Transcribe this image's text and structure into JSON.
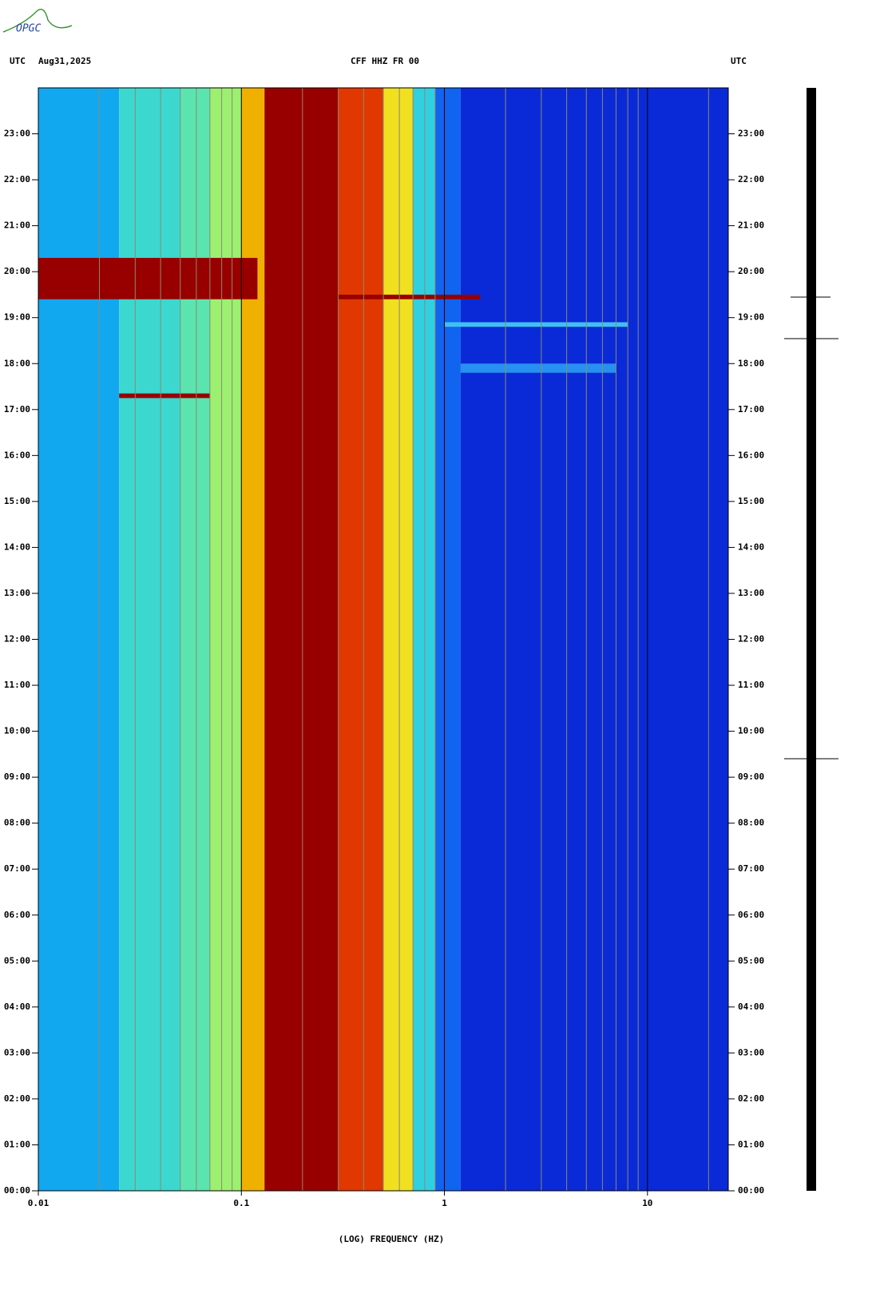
{
  "logo": "OPGC",
  "chart_data": {
    "type": "spectrogram",
    "header_left": "UTC",
    "date": "Aug31,2025",
    "title": "CFF HHZ FR 00",
    "header_right": "UTC",
    "xlabel": "(LOG) FREQUENCY (HZ)",
    "xscale": "log",
    "xlim": [
      0.01,
      25
    ],
    "xticks": [
      0.01,
      0.1,
      1,
      10
    ],
    "xgrid": [
      0.02,
      0.03,
      0.04,
      0.05,
      0.06,
      0.07,
      0.08,
      0.09,
      0.2,
      0.3,
      0.4,
      0.5,
      0.6,
      0.7,
      0.8,
      0.9,
      2,
      3,
      4,
      5,
      6,
      7,
      8,
      9,
      20
    ],
    "ylim": [
      0,
      24
    ],
    "yticks": [
      {
        "value": 0,
        "label": "00:00"
      },
      {
        "value": 1,
        "label": "01:00"
      },
      {
        "value": 2,
        "label": "02:00"
      },
      {
        "value": 3,
        "label": "03:00"
      },
      {
        "value": 4,
        "label": "04:00"
      },
      {
        "value": 5,
        "label": "05:00"
      },
      {
        "value": 6,
        "label": "06:00"
      },
      {
        "value": 7,
        "label": "07:00"
      },
      {
        "value": 8,
        "label": "08:00"
      },
      {
        "value": 9,
        "label": "09:00"
      },
      {
        "value": 10,
        "label": "10:00"
      },
      {
        "value": 11,
        "label": "11:00"
      },
      {
        "value": 12,
        "label": "12:00"
      },
      {
        "value": 13,
        "label": "13:00"
      },
      {
        "value": 14,
        "label": "14:00"
      },
      {
        "value": 15,
        "label": "15:00"
      },
      {
        "value": 16,
        "label": "16:00"
      },
      {
        "value": 17,
        "label": "17:00"
      },
      {
        "value": 18,
        "label": "18:00"
      },
      {
        "value": 19,
        "label": "19:00"
      },
      {
        "value": 20,
        "label": "20:00"
      },
      {
        "value": 21,
        "label": "21:00"
      },
      {
        "value": 22,
        "label": "22:00"
      },
      {
        "value": 23,
        "label": "23:00"
      }
    ],
    "bands": [
      {
        "x": [
          0.01,
          0.025
        ],
        "color": "#12a8f0"
      },
      {
        "x": [
          0.025,
          0.05
        ],
        "color": "#3cd8d0"
      },
      {
        "x": [
          0.05,
          0.07
        ],
        "color": "#5ce4b0"
      },
      {
        "x": [
          0.07,
          0.1
        ],
        "color": "#9cf070"
      },
      {
        "x": [
          0.1,
          0.13
        ],
        "color": "#f0b000"
      },
      {
        "x": [
          0.13,
          0.3
        ],
        "color": "#980000"
      },
      {
        "x": [
          0.3,
          0.5
        ],
        "color": "#e03800"
      },
      {
        "x": [
          0.5,
          0.7
        ],
        "color": "#f0e020"
      },
      {
        "x": [
          0.7,
          0.9
        ],
        "color": "#30d0e0"
      },
      {
        "x": [
          0.9,
          1.2
        ],
        "color": "#1064f0"
      },
      {
        "x": [
          1.2,
          25
        ],
        "color": "#0a2ad8"
      }
    ],
    "events": [
      {
        "x": [
          0.01,
          0.12
        ],
        "t": [
          19.4,
          20.3
        ],
        "color": "#980000"
      },
      {
        "x": [
          0.025,
          0.07
        ],
        "t": [
          17.25,
          17.35
        ],
        "color": "#980000"
      },
      {
        "x": [
          0.3,
          1.5
        ],
        "t": [
          19.4,
          19.5
        ],
        "color": "#980000"
      },
      {
        "x": [
          1,
          8
        ],
        "t": [
          18.8,
          18.9
        ],
        "color": "#40c0f0"
      },
      {
        "x": [
          1.2,
          7
        ],
        "t": [
          17.8,
          18.0
        ],
        "color": "#2890f0"
      }
    ]
  }
}
